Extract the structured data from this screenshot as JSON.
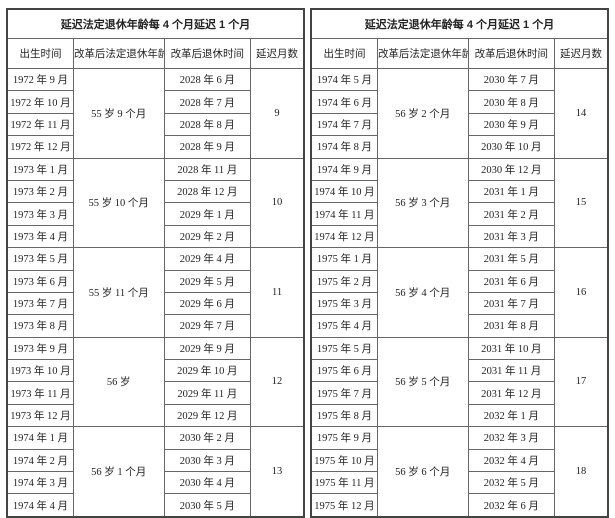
{
  "tables": [
    {
      "title": "延迟法定退休年龄每 4 个月延迟 1 个月",
      "headers": [
        "出生时间",
        "改革后法定退休年龄",
        "改革后退休时间",
        "延迟月数"
      ],
      "groups": [
        {
          "births": [
            "1972 年 9 月",
            "1972 年 10 月",
            "1972 年 11 月",
            "1972 年 12 月"
          ],
          "age": "55 岁 9 个月",
          "retires": [
            "2028 年 6 月",
            "2028 年 7 月",
            "2028 年 8 月",
            "2028 年 9 月"
          ],
          "delay": 9
        },
        {
          "births": [
            "1973 年 1 月",
            "1973 年 2 月",
            "1973 年 3 月",
            "1973 年 4 月"
          ],
          "age": "55 岁 10 个月",
          "retires": [
            "2028 年 11 月",
            "2028 年 12 月",
            "2029 年 1 月",
            "2029 年 2 月"
          ],
          "delay": 10
        },
        {
          "births": [
            "1973 年 5 月",
            "1973 年 6 月",
            "1973 年 7 月",
            "1973 年 8 月"
          ],
          "age": "55 岁 11 个月",
          "retires": [
            "2029 年 4 月",
            "2029 年 5 月",
            "2029 年 6 月",
            "2029 年 7 月"
          ],
          "delay": 11
        },
        {
          "births": [
            "1973 年 9 月",
            "1973 年 10 月",
            "1973 年 11 月",
            "1973 年 12 月"
          ],
          "age": "56 岁",
          "retires": [
            "2029 年 9 月",
            "2029 年 10 月",
            "2029 年 11 月",
            "2029 年 12 月"
          ],
          "delay": 12
        },
        {
          "births": [
            "1974 年 1 月",
            "1974 年 2 月",
            "1974 年 3 月",
            "1974 年 4 月"
          ],
          "age": "56 岁 1 个月",
          "retires": [
            "2030 年 2 月",
            "2030 年 3 月",
            "2030 年 4 月",
            "2030 年 5 月"
          ],
          "delay": 13
        }
      ]
    },
    {
      "title": "延迟法定退休年龄每 4 个月延迟 1 个月",
      "headers": [
        "出生时间",
        "改革后法定退休年龄",
        "改革后退休时间",
        "延迟月数"
      ],
      "groups": [
        {
          "births": [
            "1974 年 5 月",
            "1974 年 6 月",
            "1974 年 7 月",
            "1974 年 8 月"
          ],
          "age": "56 岁 2 个月",
          "retires": [
            "2030 年 7 月",
            "2030 年 8 月",
            "2030 年 9 月",
            "2030 年 10 月"
          ],
          "delay": 14
        },
        {
          "births": [
            "1974 年 9 月",
            "1974 年 10 月",
            "1974 年 11 月",
            "1974 年 12 月"
          ],
          "age": "56 岁 3 个月",
          "retires": [
            "2030 年 12 月",
            "2031 年 1 月",
            "2031 年 2 月",
            "2031 年 3 月"
          ],
          "delay": 15
        },
        {
          "births": [
            "1975 年 1 月",
            "1975 年 2 月",
            "1975 年 3 月",
            "1975 年 4 月"
          ],
          "age": "56 岁 4 个月",
          "retires": [
            "2031 年 5 月",
            "2031 年 6 月",
            "2031 年 7 月",
            "2031 年 8 月"
          ],
          "delay": 16
        },
        {
          "births": [
            "1975 年 5 月",
            "1975 年 6 月",
            "1975 年 7 月",
            "1975 年 8 月"
          ],
          "age": "56 岁 5 个月",
          "retires": [
            "2031 年 10 月",
            "2031 年 11 月",
            "2031 年 12 月",
            "2032 年 1 月"
          ],
          "delay": 17
        },
        {
          "births": [
            "1975 年 9 月",
            "1975 年 10 月",
            "1975 年 11 月",
            "1975 年 12 月"
          ],
          "age": "56 岁 6 个月",
          "retires": [
            "2032 年 3 月",
            "2032 年 4 月",
            "2032 年 5 月",
            "2032 年 6 月"
          ],
          "delay": 18
        }
      ]
    }
  ]
}
